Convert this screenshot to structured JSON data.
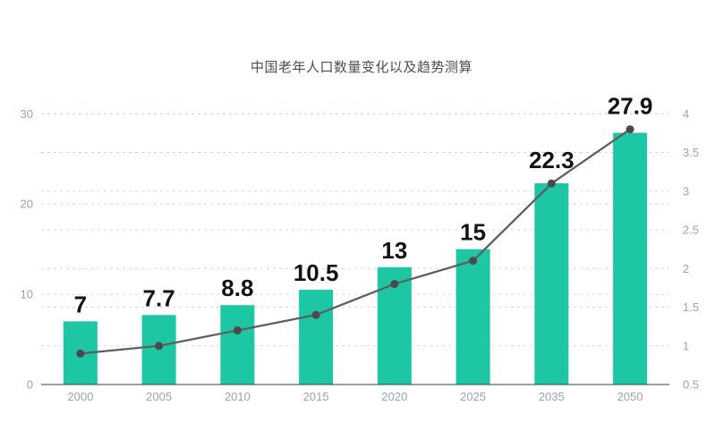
{
  "chart_data": {
    "type": "bar",
    "title": "中国老年人口数量变化以及趋势测算",
    "categories": [
      "2000",
      "2005",
      "2010",
      "2015",
      "2020",
      "2025",
      "2035",
      "2050"
    ],
    "series": [
      {
        "type": "bar",
        "axis": "left",
        "values": [
          7,
          7.7,
          8.8,
          10.5,
          13,
          15,
          22.3,
          27.9
        ],
        "labels": [
          "7",
          "7.7",
          "8.8",
          "10.5",
          "13",
          "15",
          "22.3",
          "27.9"
        ]
      },
      {
        "type": "line",
        "axis": "right",
        "values": [
          0.9,
          1.0,
          1.2,
          1.4,
          1.8,
          2.1,
          3.1,
          3.8
        ]
      }
    ],
    "left_axis": {
      "min": 0,
      "max": 30,
      "ticks": [
        0,
        10,
        20,
        30
      ],
      "tick_labels": [
        "0",
        "10",
        "20",
        "30"
      ]
    },
    "right_axis": {
      "min": 0.5,
      "max": 4,
      "ticks": [
        0.5,
        1,
        1.5,
        2,
        2.5,
        3,
        3.5,
        4
      ],
      "tick_labels": [
        "0.5",
        "1",
        "1.5",
        "2",
        "2.5",
        "3",
        "3.5",
        "4"
      ]
    },
    "grid": true,
    "legend_position": "none",
    "colors": {
      "bar": "#1ec7a3",
      "line": "#5f5f5f",
      "dot": "#4a4a4a",
      "grid": "#ccd8ee",
      "axis": "#3b3f45",
      "tick_label": "#9aa2af",
      "bar_label": "#141414",
      "title": "#4d4d4d",
      "background": "#ffffff"
    }
  }
}
